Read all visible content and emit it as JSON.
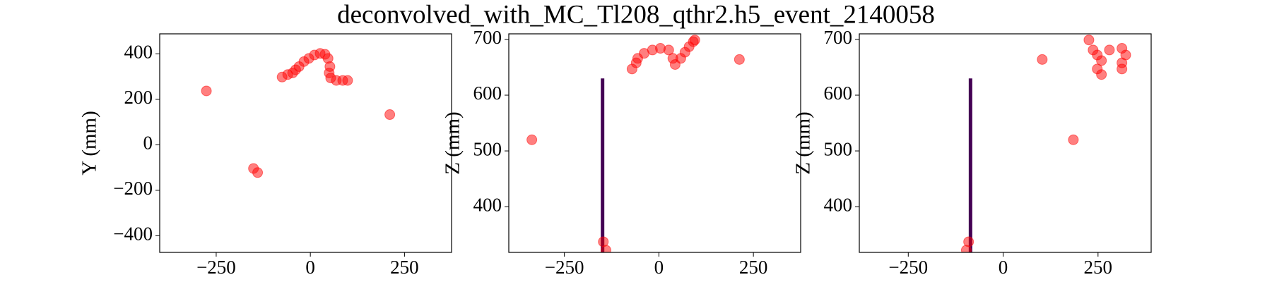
{
  "title": "deconvolved_with_MC_Tl208_qthr2.h5_event_2140058",
  "chart_data": [
    {
      "type": "scatter",
      "ylabel": "Y (mm)",
      "xlim": [
        -400,
        375
      ],
      "ylim": [
        -473,
        488
      ],
      "xticks": [
        {
          "value": -250,
          "label": "−250"
        },
        0,
        250
      ],
      "yticks": [
        {
          "value": -400,
          "label": "−400"
        },
        {
          "value": -200,
          "label": "−200"
        },
        0,
        200,
        400
      ],
      "series": [
        {
          "mode": "markers",
          "color": "#ff0000",
          "x": [
            -75,
            -60,
            -47,
            -39,
            -30,
            -17,
            -4,
            11,
            26,
            39,
            47,
            52,
            50,
            54,
            69,
            86,
            99,
            -276,
            211,
            -151,
            -140
          ],
          "values": [
            298,
            309,
            316,
            330,
            344,
            366,
            380,
            395,
            402,
            398,
            380,
            344,
            316,
            294,
            283,
            283,
            283,
            237,
            133,
            -104,
            -122
          ]
        }
      ]
    },
    {
      "type": "scatter",
      "ylabel": "Z (mm)",
      "xlim": [
        -397,
        375
      ],
      "ylim": [
        318,
        710
      ],
      "xticks": [
        {
          "value": -250,
          "label": "−250"
        },
        0,
        250
      ],
      "yticks": [
        400,
        500,
        600,
        700
      ],
      "series": [
        {
          "mode": "line",
          "color": "#440154",
          "x": [
            -149,
            -149
          ],
          "values": [
            318,
            630
          ]
        },
        {
          "mode": "markers",
          "color": "#ff0000",
          "x": [
            -71,
            -60,
            -56,
            -39,
            -17,
            4,
            26,
            37,
            43,
            58,
            69,
            80,
            91,
            95,
            -336,
            213,
            -147,
            -140
          ],
          "values": [
            647,
            658,
            666,
            675,
            681,
            684,
            681,
            666,
            655,
            666,
            677,
            687,
            696,
            699,
            520,
            664,
            337,
            322
          ]
        }
      ]
    },
    {
      "type": "scatter",
      "ylabel": "Z (mm)",
      "xlim": [
        -379,
        390
      ],
      "ylim": [
        318,
        710
      ],
      "xticks": [
        {
          "value": -250,
          "label": "−250"
        },
        0,
        250
      ],
      "yticks": [
        400,
        500,
        600,
        700
      ],
      "series": [
        {
          "mode": "line",
          "color": "#440154",
          "x": [
            -86,
            -86
          ],
          "values": [
            318,
            630
          ]
        },
        {
          "mode": "markers",
          "color": "#ff0000",
          "x": [
            226,
            237,
            248,
            280,
            313,
            323,
            313,
            259,
            248,
            259,
            313,
            103,
            185,
            -91,
            -97
          ],
          "values": [
            699,
            681,
            672,
            681,
            684,
            672,
            658,
            662,
            647,
            637,
            647,
            664,
            520,
            337,
            322
          ]
        }
      ]
    }
  ]
}
